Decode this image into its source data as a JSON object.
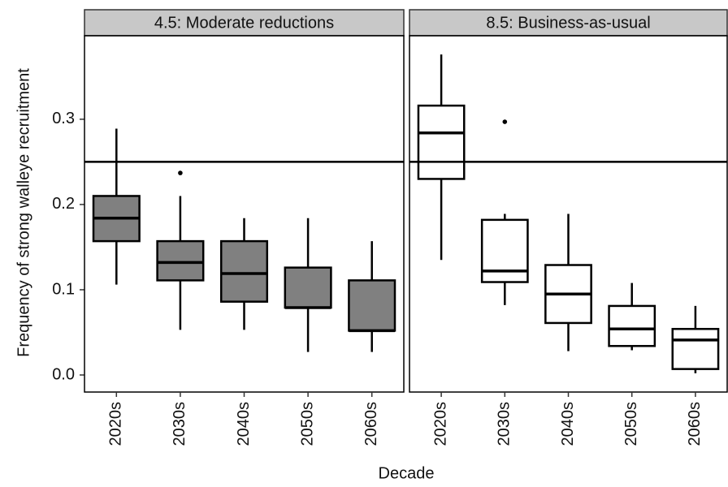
{
  "chart_data": {
    "type": "box",
    "y_label": "Frequency of strong walleye recruitment",
    "x_label": "Decade",
    "ylim": [
      -0.02,
      0.398
    ],
    "yticks": [
      {
        "value": 0,
        "label": "0.0"
      },
      0.1,
      0.2,
      0.3
    ],
    "hline": 0.25,
    "categories": [
      "2020s",
      "2030s",
      "2040s",
      "2050s",
      "2060s"
    ],
    "panels": [
      {
        "title": "4.5: Moderate reductions",
        "fill": "#808080",
        "low": [
          0.106,
          0.053,
          0.053,
          0.027,
          0.027
        ],
        "q1": [
          0.157,
          0.111,
          0.086,
          0.079,
          0.052
        ],
        "median": [
          0.184,
          0.132,
          0.119,
          0.079,
          0.052
        ],
        "q3": [
          0.21,
          0.157,
          0.157,
          0.126,
          0.111
        ],
        "high": [
          0.289,
          0.21,
          0.184,
          0.184,
          0.157
        ],
        "outliers": [
          [],
          [
            0.237
          ],
          [],
          [],
          []
        ]
      },
      {
        "title": "8.5: Business-as-usual",
        "fill": "#ffffff",
        "low": [
          0.135,
          0.082,
          0.028,
          0.029,
          0.002
        ],
        "q1": [
          0.23,
          0.109,
          0.061,
          0.034,
          0.007
        ],
        "median": [
          0.284,
          0.122,
          0.095,
          0.054,
          0.041
        ],
        "q3": [
          0.316,
          0.182,
          0.129,
          0.081,
          0.054
        ],
        "high": [
          0.376,
          0.189,
          0.189,
          0.108,
          0.081
        ],
        "outliers": [
          [],
          [
            0.297
          ],
          [],
          [],
          []
        ]
      }
    ]
  }
}
